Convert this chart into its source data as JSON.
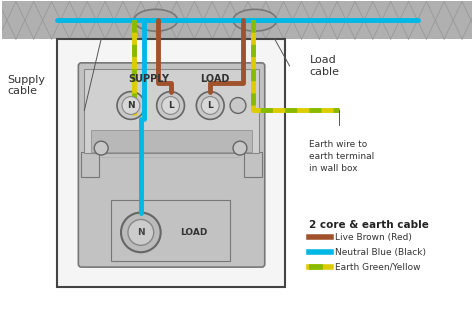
{
  "bg_color": "#ffffff",
  "supply_label": "Supply\ncable",
  "load_label": "Load\ncable",
  "earth_label": "Earth wire to\nearth terminal\nin wall box",
  "legend_title": "2 core & earth cable",
  "legend_items": [
    {
      "label": "Live Brown (Red)",
      "color": "#a0522d"
    },
    {
      "label": "Neutral Blue (Black)",
      "color": "#00b8e6"
    },
    {
      "label": "Earth Green/Yellow",
      "color": "earth"
    }
  ],
  "supply_text": "SUPPLY",
  "load_text_top": "LOAD",
  "load_text_bottom": "LOAD",
  "brown_color": "#a0522d",
  "blue_color": "#00b8e6",
  "earth_green": "#88bb00",
  "earth_yellow": "#ddcc00",
  "wall_color": "#b0b0b0",
  "device_color": "#c2c2c2",
  "device_dark": "#a8a8a8",
  "box_border": "#444444",
  "white_box": "#f5f5f5"
}
